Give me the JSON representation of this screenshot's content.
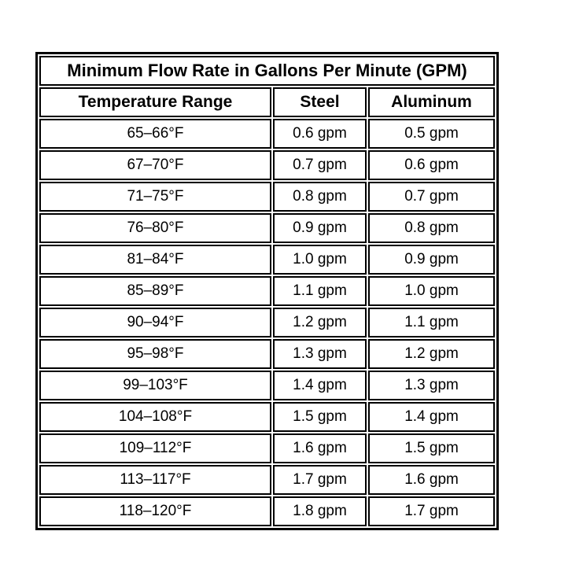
{
  "chart_data": {
    "type": "table",
    "title": "Minimum Flow Rate in Gallons Per Minute (GPM)",
    "columns": [
      "Temperature Range",
      "Steel",
      "Aluminum"
    ],
    "rows": [
      [
        "65–66°F",
        "0.6 gpm",
        "0.5 gpm"
      ],
      [
        "67–70°F",
        "0.7 gpm",
        "0.6 gpm"
      ],
      [
        "71–75°F",
        "0.8 gpm",
        "0.7 gpm"
      ],
      [
        "76–80°F",
        "0.9 gpm",
        "0.8 gpm"
      ],
      [
        "81–84°F",
        "1.0 gpm",
        "0.9 gpm"
      ],
      [
        "85–89°F",
        "1.1 gpm",
        "1.0 gpm"
      ],
      [
        "90–94°F",
        "1.2 gpm",
        "1.1 gpm"
      ],
      [
        "95–98°F",
        "1.3 gpm",
        "1.2 gpm"
      ],
      [
        "99–103°F",
        "1.4 gpm",
        "1.3 gpm"
      ],
      [
        "104–108°F",
        "1.5 gpm",
        "1.4 gpm"
      ],
      [
        "109–112°F",
        "1.6 gpm",
        "1.5 gpm"
      ],
      [
        "113–117°F",
        "1.7 gpm",
        "1.6 gpm"
      ],
      [
        "118–120°F",
        "1.8 gpm",
        "1.7 gpm"
      ]
    ],
    "categories": [
      "65–66°F",
      "67–70°F",
      "71–75°F",
      "76–80°F",
      "81–84°F",
      "85–89°F",
      "90–94°F",
      "95–98°F",
      "99–103°F",
      "104–108°F",
      "109–112°F",
      "113–117°F",
      "118–120°F"
    ],
    "series": [
      {
        "name": "Steel",
        "values": [
          0.6,
          0.7,
          0.8,
          0.9,
          1.0,
          1.1,
          1.2,
          1.3,
          1.4,
          1.5,
          1.6,
          1.7,
          1.8
        ]
      },
      {
        "name": "Aluminum",
        "values": [
          0.5,
          0.6,
          0.7,
          0.8,
          0.9,
          1.0,
          1.1,
          1.2,
          1.3,
          1.4,
          1.5,
          1.6,
          1.7
        ]
      }
    ],
    "unit": "gpm",
    "colors": {
      "border": "#000000",
      "text": "#000000",
      "background": "#ffffff"
    }
  }
}
